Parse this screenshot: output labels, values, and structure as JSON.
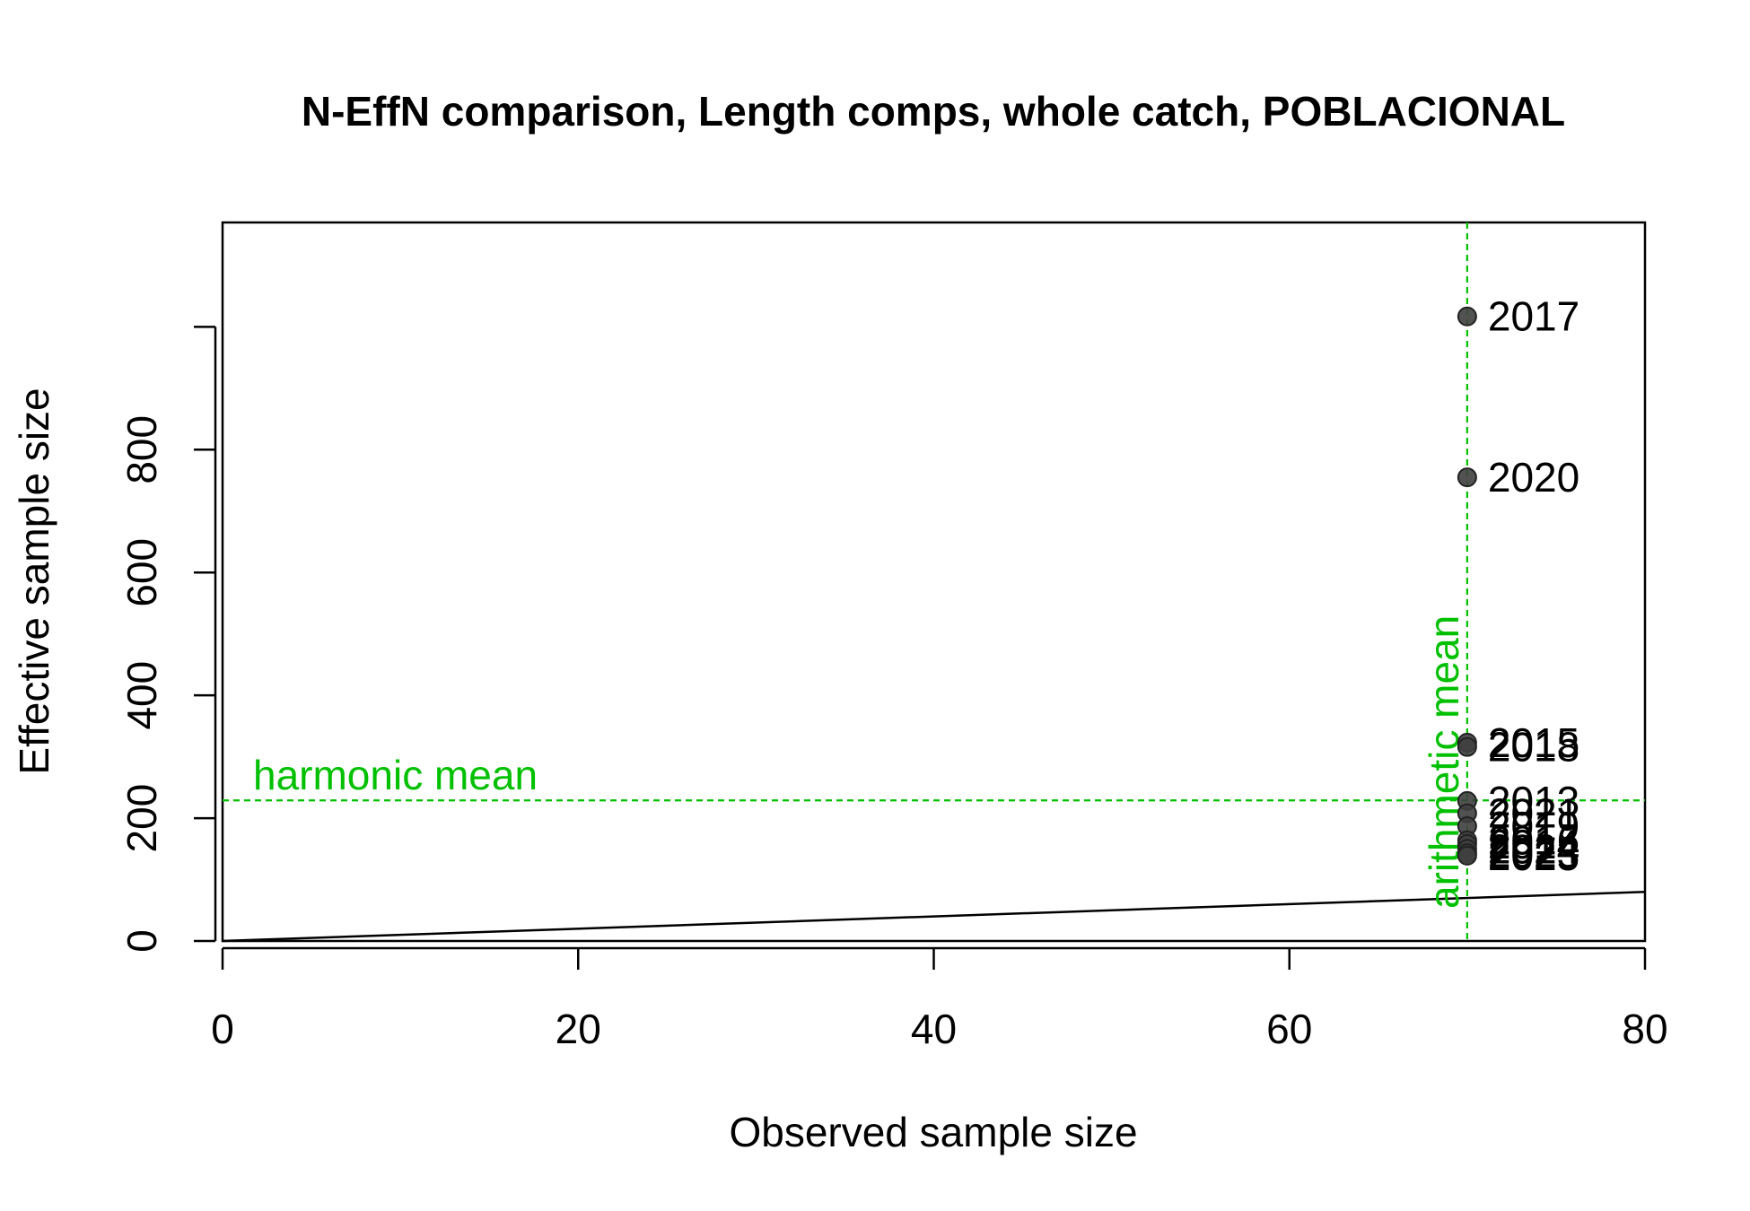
{
  "chart_data": {
    "type": "scatter",
    "title": "N-EffN comparison, Length comps, whole catch, POBLACIONAL",
    "xlabel": "Observed sample size",
    "ylabel": "Effective sample size",
    "xlim": [
      0,
      80
    ],
    "ylim": [
      0,
      1170
    ],
    "x_ticks": [
      0,
      20,
      40,
      60,
      80
    ],
    "y_ticks": [
      0,
      200,
      400,
      600,
      800
    ],
    "grid": false,
    "legend": "none",
    "point_color": "#3f3f3f",
    "mean_color": "#00c000",
    "points": [
      {
        "label": "2017",
        "x": 70,
        "y": 1017
      },
      {
        "label": "2020",
        "x": 70,
        "y": 755
      },
      {
        "label": "2015",
        "x": 70,
        "y": 323
      },
      {
        "label": "2018",
        "x": 70,
        "y": 316
      },
      {
        "label": "2013",
        "x": 70,
        "y": 228
      },
      {
        "label": "2021",
        "x": 70,
        "y": 208
      },
      {
        "label": "2019",
        "x": 70,
        "y": 187
      },
      {
        "label": "2016",
        "x": 70,
        "y": 164
      },
      {
        "label": "2014",
        "x": 70,
        "y": 158
      },
      {
        "label": "2024",
        "x": 70,
        "y": 150
      },
      {
        "label": "2023",
        "x": 70,
        "y": 143
      },
      {
        "label": "2025",
        "x": 70,
        "y": 139
      }
    ],
    "reference_line": {
      "slope": 1,
      "intercept": 0
    },
    "harmonic_mean": {
      "label": "harmonic mean",
      "value": 229
    },
    "arithmetic_mean": {
      "label": "arithmetic mean",
      "value": 70
    }
  }
}
